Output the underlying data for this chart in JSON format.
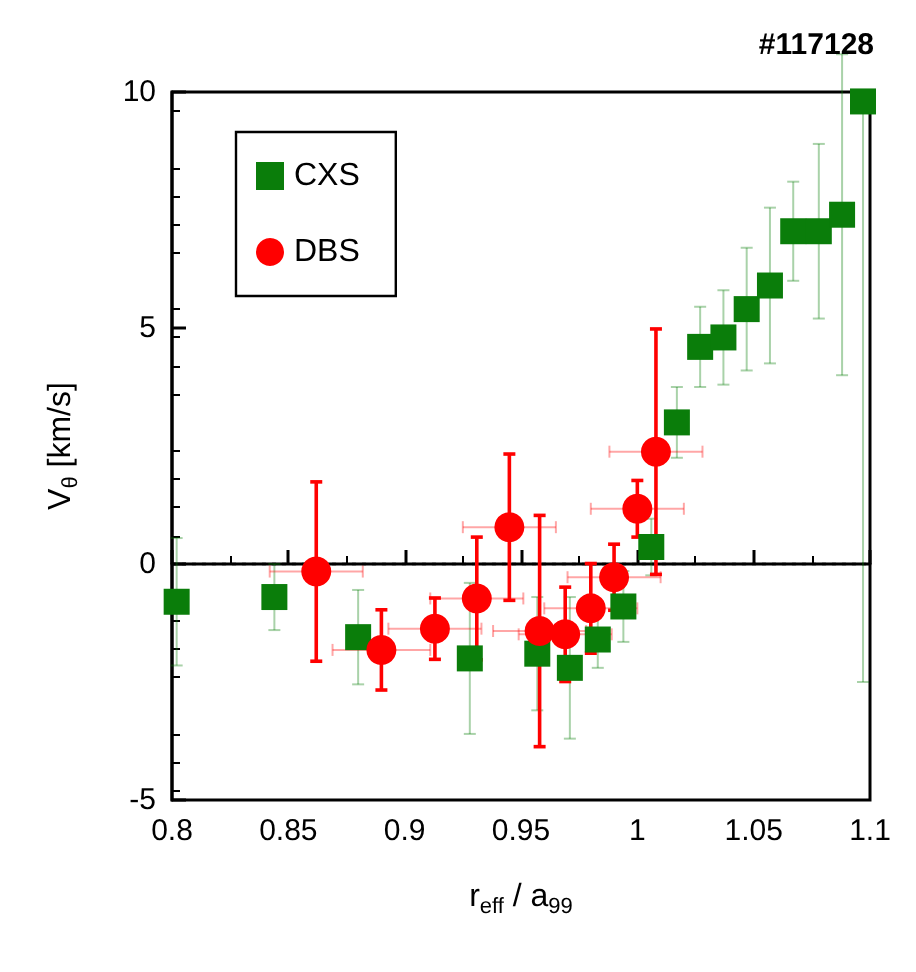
{
  "chart_data": {
    "type": "scatter",
    "title": "#117128",
    "xlabel": "r$_{eff}$ / a$_{99}$",
    "ylabel": "V$_{θ}$ [km/s]",
    "xlim": [
      0.8,
      1.1
    ],
    "xticks": [
      0.8,
      0.85,
      0.9,
      0.95,
      1,
      1.05,
      1.1
    ],
    "ylim": [
      -5,
      10
    ],
    "yticks": [
      -5,
      0,
      5,
      10
    ],
    "grid": false,
    "legend": "top left",
    "ref_lines": [
      {
        "axis": "y",
        "value": 0,
        "color": "#000000",
        "line_style": "dotted"
      }
    ],
    "series": [
      {
        "name": "CXS",
        "color": "#0a7d0a",
        "marker": "square",
        "x": [
          0.802,
          0.844,
          0.88,
          0.928,
          0.957,
          0.971,
          0.983,
          0.994,
          1.006,
          1.017,
          1.027,
          1.037,
          1.047,
          1.057,
          1.067,
          1.078,
          1.088,
          1.097
        ],
        "values": [
          -0.8,
          -0.7,
          -1.55,
          -2.0,
          -1.9,
          -2.2,
          -1.6,
          -0.9,
          0.36,
          3.0,
          4.6,
          4.8,
          5.4,
          5.9,
          7.05,
          7.05,
          7.4,
          9.8
        ],
        "errors": [
          1.35,
          0.7,
          1.0,
          1.6,
          1.2,
          1.5,
          0.6,
          0.75,
          0.6,
          0.75,
          0.85,
          1.0,
          1.3,
          1.65,
          1.05,
          1.85,
          3.4,
          [
            -2.5,
            10
          ]
        ]
      },
      {
        "name": "DBS",
        "color": "#ff0000",
        "marker": "circle",
        "x": [
          0.862,
          0.89,
          0.913,
          0.931,
          0.945,
          0.958,
          0.969,
          0.98,
          0.99,
          1.0,
          1.008
        ],
        "values": [
          -0.16,
          -1.82,
          -1.37,
          -0.73,
          0.78,
          -1.42,
          -1.49,
          -0.94,
          -0.28,
          1.17,
          2.38
        ],
        "errors": [
          1.9,
          0.85,
          0.65,
          1.3,
          1.55,
          2.45,
          1.0,
          0.95,
          0.7,
          0.6,
          2.6
        ],
        "xerrors": [
          0.02,
          0.021,
          0.02,
          0.02,
          0.02,
          0.02,
          0.02,
          0.02,
          0.02,
          0.02,
          0.02
        ]
      }
    ]
  }
}
